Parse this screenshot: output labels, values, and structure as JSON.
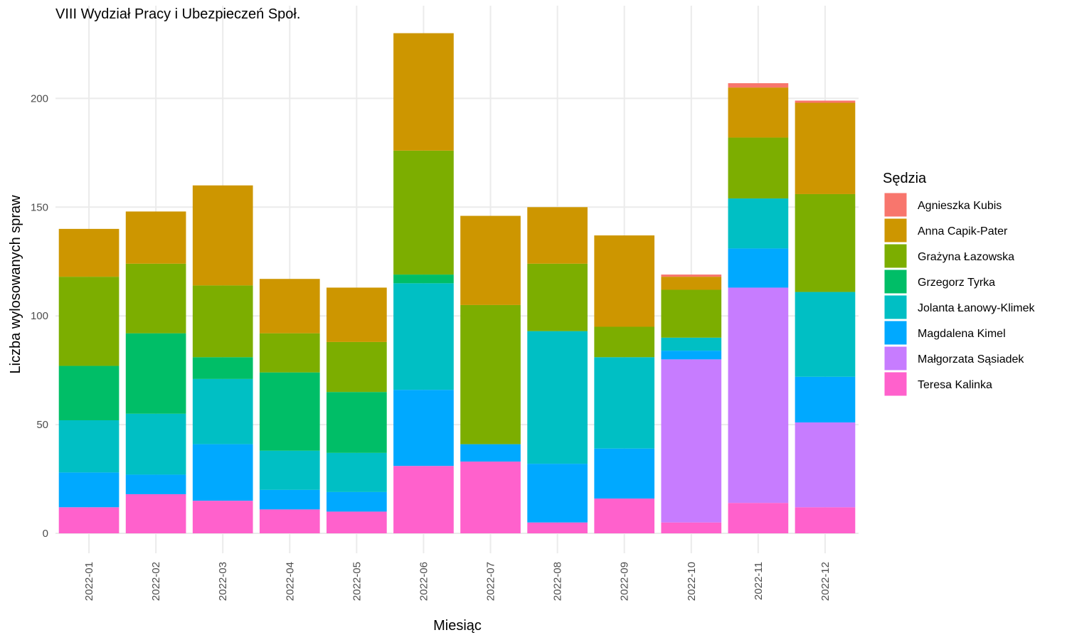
{
  "chart_data": {
    "type": "bar",
    "stacked": true,
    "title": "VIII Wydział Pracy i Ubezpieczeń Społ.",
    "xlabel": "Miesiąc",
    "ylabel": "Liczba wylosowanych spraw",
    "ylim": [
      0,
      230
    ],
    "yticks": [
      "0",
      "50",
      "100",
      "150",
      "200"
    ],
    "grid": true,
    "legend_title": "Sędzia",
    "legend_position": "right",
    "categories": [
      "2022-01",
      "2022-02",
      "2022-03",
      "2022-04",
      "2022-05",
      "2022-06",
      "2022-07",
      "2022-08",
      "2022-09",
      "2022-10",
      "2022-11",
      "2022-12"
    ],
    "series": [
      {
        "name": "Agnieszka Kubis",
        "color": "#F8766D",
        "values": [
          0,
          0,
          0,
          0,
          0,
          0,
          0,
          0,
          0,
          1,
          2,
          1
        ]
      },
      {
        "name": "Anna Capik-Pater",
        "color": "#CD9600",
        "values": [
          22,
          24,
          46,
          25,
          25,
          54,
          41,
          26,
          42,
          6,
          23,
          42
        ]
      },
      {
        "name": "Grażyna Łazowska",
        "color": "#7CAE00",
        "values": [
          41,
          32,
          33,
          18,
          23,
          57,
          64,
          31,
          14,
          22,
          28,
          45
        ]
      },
      {
        "name": "Grzegorz Tyrka",
        "color": "#00BE67",
        "values": [
          25,
          37,
          10,
          36,
          28,
          4,
          0,
          0,
          0,
          0,
          0,
          0
        ]
      },
      {
        "name": "Jolanta Łanowy-Klimek",
        "color": "#00BFC4",
        "values": [
          24,
          28,
          30,
          18,
          18,
          49,
          0,
          61,
          42,
          6,
          23,
          39
        ]
      },
      {
        "name": "Magdalena Kimel",
        "color": "#00A9FF",
        "values": [
          16,
          9,
          26,
          9,
          9,
          35,
          8,
          27,
          23,
          4,
          18,
          21
        ]
      },
      {
        "name": "Małgorzata Sąsiadek",
        "color": "#C77CFF",
        "values": [
          0,
          0,
          0,
          0,
          0,
          0,
          0,
          0,
          0,
          75,
          99,
          39
        ]
      },
      {
        "name": "Teresa Kalinka",
        "color": "#FF61CC",
        "values": [
          12,
          18,
          15,
          11,
          10,
          31,
          33,
          5,
          16,
          5,
          14,
          12
        ]
      }
    ]
  }
}
